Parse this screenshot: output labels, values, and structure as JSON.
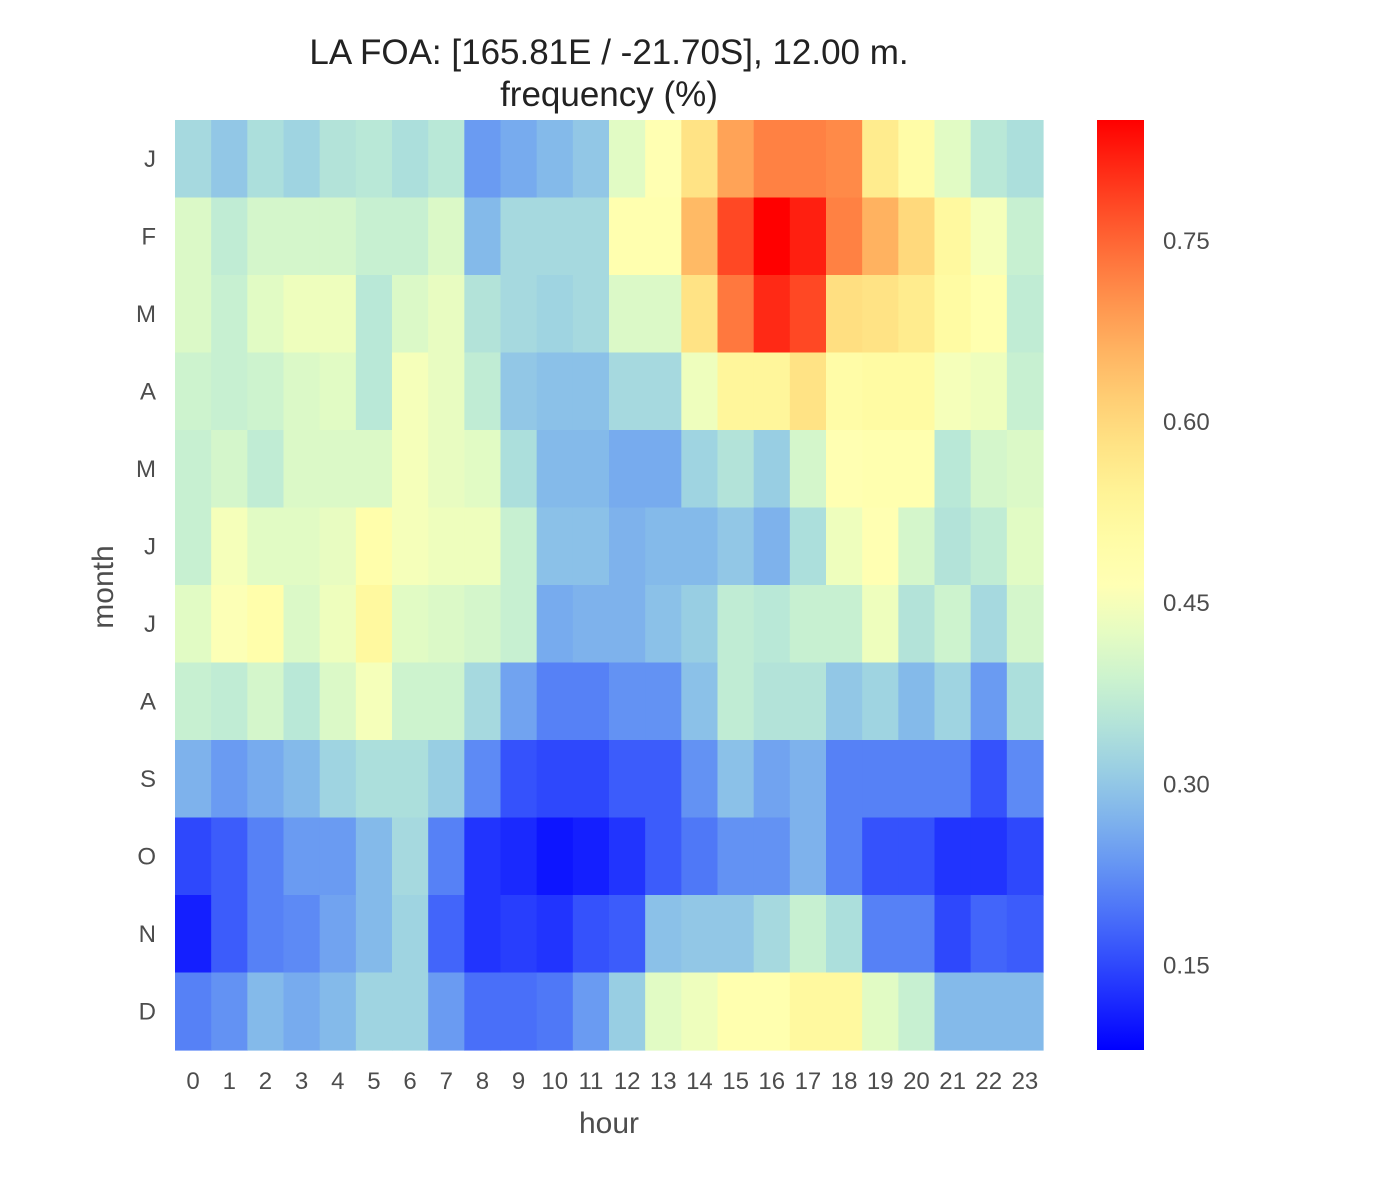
{
  "chart_data": {
    "type": "heatmap",
    "title_line1": "LA FOA: [165.81E / -21.70S], 12.00 m.",
    "title_line2": "frequency (%)",
    "xlabel": "hour",
    "ylabel": "month",
    "x": [
      "0",
      "1",
      "2",
      "3",
      "4",
      "5",
      "6",
      "7",
      "8",
      "9",
      "10",
      "11",
      "12",
      "13",
      "14",
      "15",
      "16",
      "17",
      "18",
      "19",
      "20",
      "21",
      "22",
      "23"
    ],
    "y": [
      "J",
      "F",
      "M",
      "A",
      "M",
      "J",
      "J",
      "A",
      "S",
      "O",
      "N",
      "D"
    ],
    "colormap": "rainbow",
    "vmin": 0.08,
    "vmax": 0.85,
    "colorbar_ticks": [
      "0.15",
      "0.30",
      "0.45",
      "0.60",
      "0.75"
    ],
    "colorbar_tick_values": [
      0.15,
      0.3,
      0.45,
      0.6,
      0.75
    ],
    "grid": false,
    "values": [
      [
        0.33,
        0.3,
        0.34,
        0.32,
        0.35,
        0.36,
        0.34,
        0.36,
        0.24,
        0.26,
        0.28,
        0.3,
        0.42,
        0.47,
        0.58,
        0.68,
        0.72,
        0.72,
        0.71,
        0.56,
        0.5,
        0.42,
        0.36,
        0.34
      ],
      [
        0.41,
        0.37,
        0.4,
        0.4,
        0.4,
        0.38,
        0.38,
        0.41,
        0.28,
        0.33,
        0.33,
        0.33,
        0.48,
        0.48,
        0.65,
        0.78,
        0.85,
        0.82,
        0.72,
        0.66,
        0.6,
        0.52,
        0.45,
        0.38
      ],
      [
        0.41,
        0.38,
        0.42,
        0.44,
        0.44,
        0.36,
        0.41,
        0.43,
        0.35,
        0.33,
        0.32,
        0.33,
        0.41,
        0.41,
        0.58,
        0.73,
        0.81,
        0.78,
        0.59,
        0.58,
        0.56,
        0.51,
        0.48,
        0.37
      ],
      [
        0.39,
        0.38,
        0.39,
        0.41,
        0.42,
        0.36,
        0.45,
        0.43,
        0.37,
        0.3,
        0.29,
        0.29,
        0.33,
        0.33,
        0.44,
        0.53,
        0.53,
        0.58,
        0.5,
        0.51,
        0.51,
        0.45,
        0.44,
        0.38
      ],
      [
        0.38,
        0.4,
        0.37,
        0.41,
        0.41,
        0.41,
        0.45,
        0.43,
        0.42,
        0.34,
        0.28,
        0.28,
        0.26,
        0.26,
        0.32,
        0.35,
        0.31,
        0.4,
        0.47,
        0.48,
        0.48,
        0.36,
        0.4,
        0.41
      ],
      [
        0.38,
        0.45,
        0.42,
        0.42,
        0.43,
        0.49,
        0.45,
        0.44,
        0.44,
        0.38,
        0.29,
        0.29,
        0.27,
        0.28,
        0.28,
        0.3,
        0.27,
        0.34,
        0.44,
        0.47,
        0.4,
        0.35,
        0.37,
        0.42
      ],
      [
        0.42,
        0.46,
        0.49,
        0.41,
        0.44,
        0.52,
        0.42,
        0.41,
        0.4,
        0.38,
        0.26,
        0.27,
        0.27,
        0.29,
        0.31,
        0.37,
        0.36,
        0.38,
        0.38,
        0.44,
        0.35,
        0.39,
        0.33,
        0.4
      ],
      [
        0.38,
        0.37,
        0.4,
        0.36,
        0.41,
        0.45,
        0.39,
        0.39,
        0.33,
        0.25,
        0.21,
        0.21,
        0.23,
        0.23,
        0.29,
        0.37,
        0.35,
        0.35,
        0.3,
        0.32,
        0.28,
        0.32,
        0.24,
        0.34
      ],
      [
        0.27,
        0.24,
        0.26,
        0.28,
        0.32,
        0.34,
        0.34,
        0.31,
        0.22,
        0.16,
        0.15,
        0.15,
        0.17,
        0.17,
        0.23,
        0.29,
        0.25,
        0.27,
        0.21,
        0.21,
        0.21,
        0.21,
        0.16,
        0.22
      ],
      [
        0.15,
        0.17,
        0.21,
        0.24,
        0.24,
        0.28,
        0.33,
        0.21,
        0.13,
        0.12,
        0.1,
        0.11,
        0.13,
        0.17,
        0.2,
        0.23,
        0.23,
        0.27,
        0.21,
        0.16,
        0.16,
        0.13,
        0.13,
        0.15
      ],
      [
        0.11,
        0.17,
        0.21,
        0.22,
        0.25,
        0.28,
        0.32,
        0.18,
        0.13,
        0.14,
        0.13,
        0.16,
        0.17,
        0.29,
        0.3,
        0.3,
        0.33,
        0.38,
        0.34,
        0.21,
        0.21,
        0.15,
        0.18,
        0.17
      ],
      [
        0.21,
        0.23,
        0.28,
        0.26,
        0.28,
        0.32,
        0.32,
        0.24,
        0.19,
        0.19,
        0.2,
        0.24,
        0.31,
        0.42,
        0.44,
        0.48,
        0.48,
        0.52,
        0.52,
        0.42,
        0.38,
        0.28,
        0.28,
        0.28
      ]
    ]
  }
}
